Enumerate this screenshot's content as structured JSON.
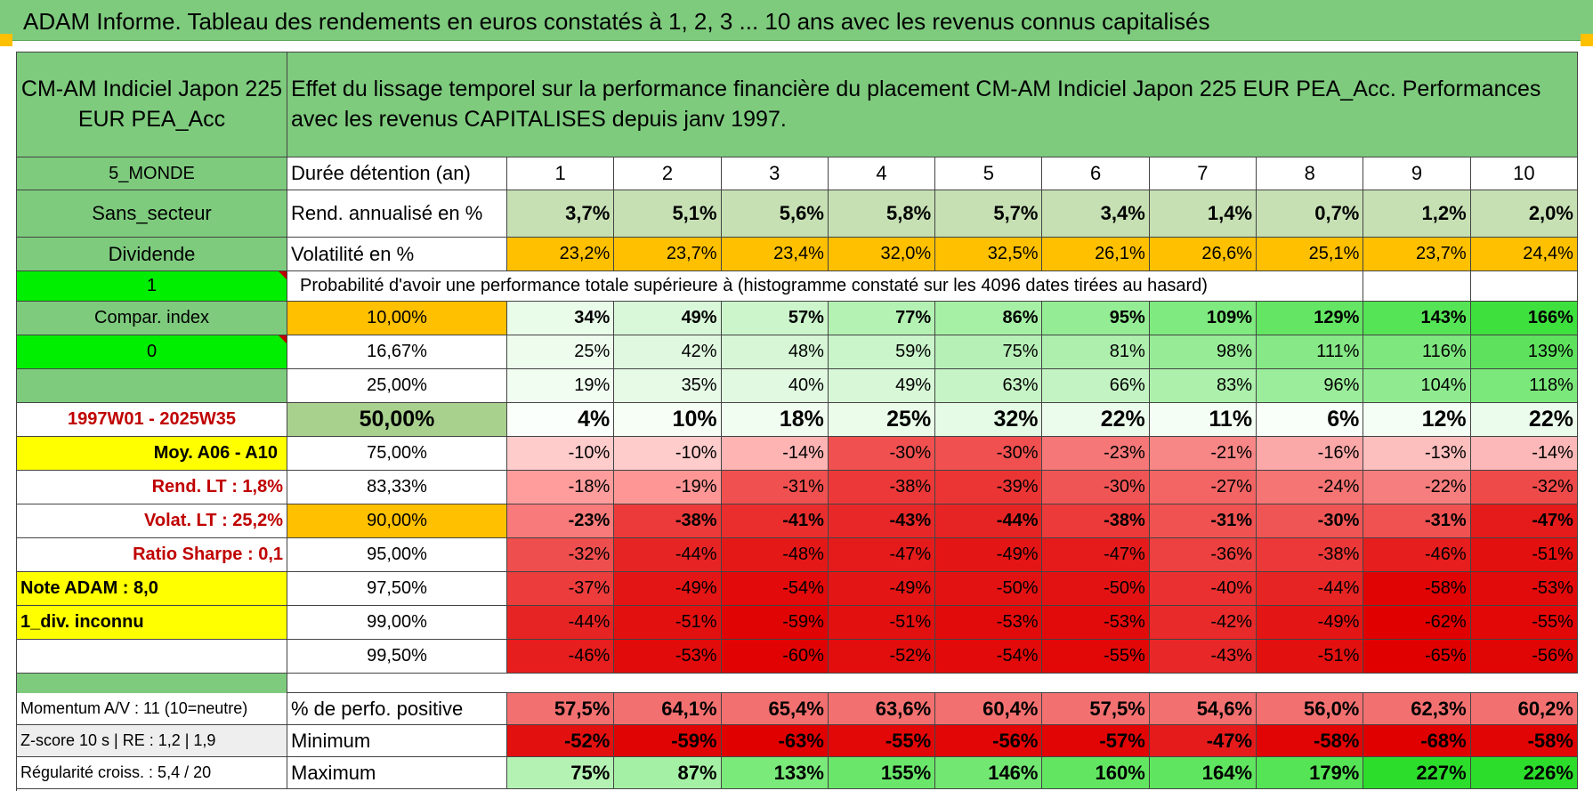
{
  "title": "ADAM Informe. Tableau des rendements en euros constatés à 1, 2, 3 ... 10 ans avec les revenus connus capitalisés",
  "fund_name": "CM-AM Indiciel Japon 225 EUR PEA_Acc",
  "description": "Effet du lissage temporel sur la performance financière du placement CM-AM Indiciel Japon 225 EUR PEA_Acc. Performances avec les revenus CAPITALISES depuis janv 1997.",
  "left_labels": {
    "zone": "5_MONDE",
    "sector": "Sans_secteur",
    "dividend": "Dividende",
    "flag1": "1",
    "compar_index": "Compar. index",
    "flag0": "0",
    "period": "1997W01 - 2025W35",
    "moy": "Moy. A06 - A10",
    "rend_lt": "Rend. LT :   1,8%",
    "volat_lt": "Volat. LT :   25,2%",
    "sharpe": "Ratio Sharpe :   0,1",
    "note": "Note ADAM : 8,0",
    "div_unknown": "1_div. inconnu",
    "momentum": "Momentum A/V : 11 (10=neutre)",
    "zscore": "Z-score 10 s | RE : 1,2  | 1,9",
    "regularite": "Régularité croiss. : 5,4 / 20"
  },
  "row_labels": {
    "duration": "Durée détention (an)",
    "rend": "Rend. annualisé en %",
    "vol": "Volatilité en %",
    "proba": "Probabilité d'avoir une performance totale supérieure à (histogramme constaté sur les 4096 dates tirées au hasard)",
    "positive": "% de perfo. positive",
    "minimum": "Minimum",
    "maximum": "Maximum"
  },
  "years": [
    "1",
    "2",
    "3",
    "4",
    "5",
    "6",
    "7",
    "8",
    "9",
    "10"
  ],
  "rend": [
    "3,7%",
    "5,1%",
    "5,6%",
    "5,8%",
    "5,7%",
    "3,4%",
    "1,4%",
    "0,7%",
    "1,2%",
    "2,0%"
  ],
  "vol": [
    "23,2%",
    "23,7%",
    "23,4%",
    "32,0%",
    "32,5%",
    "26,1%",
    "26,6%",
    "25,1%",
    "23,7%",
    "24,4%"
  ],
  "proba_rows": [
    {
      "label": "10,00%",
      "values": [
        "34%",
        "49%",
        "57%",
        "77%",
        "86%",
        "95%",
        "109%",
        "129%",
        "143%",
        "166%"
      ],
      "colors": [
        "#e9fbe9",
        "#d9f7d9",
        "#ccf5cc",
        "#b4f2b4",
        "#a6f0a6",
        "#94ed94",
        "#7fea7f",
        "#64e664",
        "#55e455",
        "#3ee03e"
      ]
    },
    {
      "label": "16,67%",
      "values": [
        "25%",
        "42%",
        "48%",
        "59%",
        "75%",
        "81%",
        "98%",
        "111%",
        "116%",
        "139%"
      ],
      "colors": [
        "#eefcee",
        "#e0f8e0",
        "#d6f6d6",
        "#caf4ca",
        "#b7f0b7",
        "#aeefae",
        "#97eb97",
        "#86e886",
        "#7ee77e",
        "#5ee25e"
      ]
    },
    {
      "label": "25,00%",
      "values": [
        "19%",
        "35%",
        "40%",
        "49%",
        "63%",
        "66%",
        "83%",
        "96%",
        "104%",
        "118%"
      ],
      "colors": [
        "#f2fdf2",
        "#e6fae6",
        "#e1f9e1",
        "#d7f7d7",
        "#c6f4c6",
        "#c3f3c3",
        "#acf0ac",
        "#9bed9b",
        "#90eb90",
        "#7be87b"
      ]
    },
    {
      "label": "50,00%",
      "values": [
        "4%",
        "10%",
        "18%",
        "25%",
        "32%",
        "22%",
        "11%",
        "6%",
        "12%",
        "22%"
      ],
      "colors": [
        "#fbfffb",
        "#f6fef6",
        "#f0fdf0",
        "#ebfcea",
        "#e5fbe5",
        "#ecfcec",
        "#f5fef5",
        "#f9fff9",
        "#f4fef4",
        "#ecfcec"
      ]
    },
    {
      "label": "75,00%",
      "values": [
        "-10%",
        "-10%",
        "-14%",
        "-30%",
        "-30%",
        "-23%",
        "-21%",
        "-16%",
        "-13%",
        "-14%"
      ],
      "colors": [
        "#ffcccc",
        "#ffcccc",
        "#ffb4b4",
        "#f05050",
        "#f05050",
        "#f57777",
        "#f78686",
        "#fba8a8",
        "#fdbebe",
        "#fcb8b8"
      ]
    },
    {
      "label": "83,33%",
      "values": [
        "-18%",
        "-19%",
        "-31%",
        "-38%",
        "-39%",
        "-30%",
        "-27%",
        "-24%",
        "-22%",
        "-32%"
      ],
      "colors": [
        "#ff9c9c",
        "#ff9696",
        "#f05050",
        "#ec3838",
        "#eb3434",
        "#f05555",
        "#f36464",
        "#f57474",
        "#f77e7e",
        "#ef4a4a"
      ]
    },
    {
      "label": "90,00%",
      "values": [
        "-23%",
        "-38%",
        "-41%",
        "-43%",
        "-44%",
        "-38%",
        "-31%",
        "-30%",
        "-31%",
        "-47%"
      ],
      "colors": [
        "#f87a7a",
        "#ec3a3a",
        "#ea2e2e",
        "#e82828",
        "#e72424",
        "#ec3a3a",
        "#f05252",
        "#f05555",
        "#f05252",
        "#e51b1b"
      ]
    },
    {
      "label": "95,00%",
      "values": [
        "-32%",
        "-44%",
        "-48%",
        "-47%",
        "-49%",
        "-47%",
        "-36%",
        "-38%",
        "-46%",
        "-51%"
      ],
      "colors": [
        "#ef4e4e",
        "#e72424",
        "#e51818",
        "#e51b1b",
        "#e41515",
        "#e51b1b",
        "#ed4040",
        "#ec3838",
        "#e61e1e",
        "#e31010"
      ]
    },
    {
      "label": "97,50%",
      "values": [
        "-37%",
        "-49%",
        "-54%",
        "-49%",
        "-50%",
        "-50%",
        "-40%",
        "-44%",
        "-58%",
        "-53%"
      ],
      "colors": [
        "#ed3c3c",
        "#e41515",
        "#e20a0a",
        "#e41515",
        "#e31212",
        "#e31212",
        "#ea3030",
        "#e72424",
        "#e10404",
        "#e20b0b"
      ]
    },
    {
      "label": "99,00%",
      "values": [
        "-44%",
        "-51%",
        "-59%",
        "-51%",
        "-53%",
        "-53%",
        "-42%",
        "-49%",
        "-62%",
        "-55%"
      ],
      "colors": [
        "#e72424",
        "#e31010",
        "#e10404",
        "#e31010",
        "#e20b0b",
        "#e20b0b",
        "#e92a2a",
        "#e41515",
        "#e00000",
        "#e20808"
      ]
    },
    {
      "label": "99,50%",
      "values": [
        "-46%",
        "-53%",
        "-60%",
        "-52%",
        "-54%",
        "-55%",
        "-43%",
        "-51%",
        "-65%",
        "-56%"
      ],
      "colors": [
        "#e61e1e",
        "#e20b0b",
        "#e10303",
        "#e20e0e",
        "#e20a0a",
        "#e20808",
        "#e82828",
        "#e31010",
        "#e00000",
        "#e10606"
      ]
    }
  ],
  "positive": [
    "57,5%",
    "64,1%",
    "65,4%",
    "63,6%",
    "60,4%",
    "57,5%",
    "54,6%",
    "56,0%",
    "62,3%",
    "60,2%"
  ],
  "positive_colors": [
    "#f37070",
    "#f37070",
    "#f37070",
    "#f37070",
    "#f37070",
    "#f37070",
    "#f37070",
    "#f37070",
    "#f37070",
    "#f37070"
  ],
  "minimum": [
    "-52%",
    "-59%",
    "-63%",
    "-55%",
    "-56%",
    "-57%",
    "-47%",
    "-58%",
    "-68%",
    "-58%"
  ],
  "minimum_colors": [
    "#e31010",
    "#e10404",
    "#e00000",
    "#e20808",
    "#e20606",
    "#e10505",
    "#e51b1b",
    "#e10505",
    "#e00000",
    "#e10505"
  ],
  "maximum": [
    "75%",
    "87%",
    "133%",
    "155%",
    "146%",
    "160%",
    "164%",
    "179%",
    "227%",
    "226%"
  ],
  "maximum_colors": [
    "#b4f2b4",
    "#a4f0a4",
    "#7aea7a",
    "#6ae76a",
    "#72e872",
    "#62e662",
    "#5fe55f",
    "#55e455",
    "#2cdd2c",
    "#2cdd2c"
  ]
}
